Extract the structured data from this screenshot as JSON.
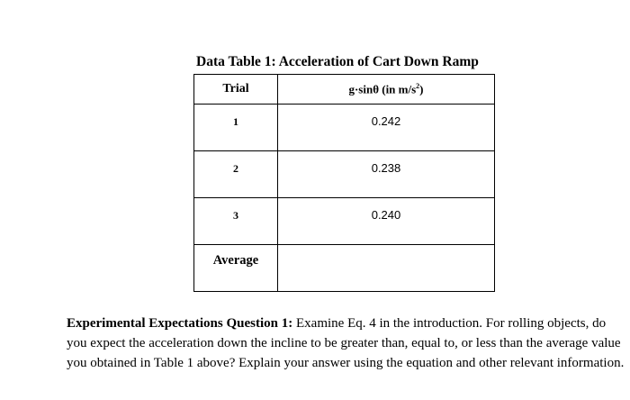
{
  "table": {
    "title": "Data Table 1:  Acceleration of Cart Down Ramp",
    "header_trial": "Trial",
    "header_value_main": "g·sinθ  (in m/s",
    "header_value_exp": "2",
    "header_value_close": ")",
    "rows": [
      {
        "trial": "1",
        "value": "0.242"
      },
      {
        "trial": "2",
        "value": "0.238"
      },
      {
        "trial": "3",
        "value": "0.240"
      }
    ],
    "average_label": "Average",
    "average_value": ""
  },
  "question": {
    "label": "Experimental Expectations Question 1:",
    "text": " Examine Eq. 4 in the introduction.  For rolling objects, do you expect the acceleration down the incline to be greater than, equal to, or less than the average value you obtained in Table 1 above? Explain your answer using the equation and other relevant information."
  }
}
